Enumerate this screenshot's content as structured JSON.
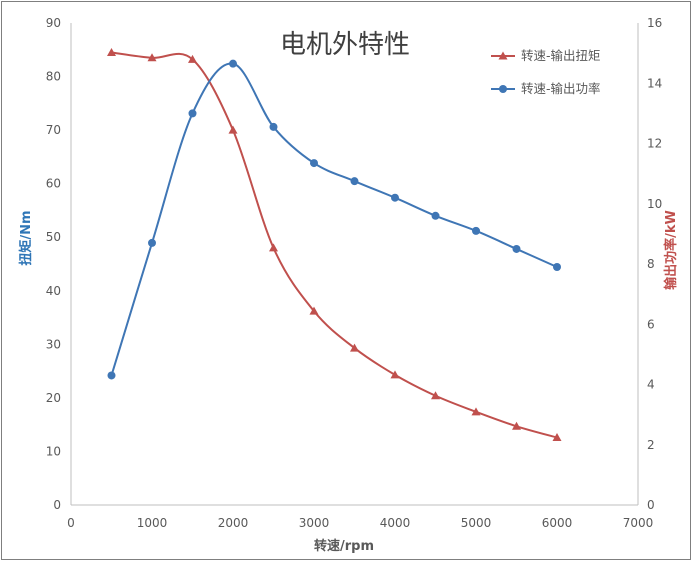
{
  "chart_data": {
    "type": "line",
    "title": "电机外特性",
    "xlabel": "转速/rpm",
    "ylabel_left": "扭矩/Nm",
    "ylabel_right": "输出功率/kW",
    "xlim": [
      0,
      7000
    ],
    "ylim_left": [
      0,
      90
    ],
    "ylim_right": [
      0,
      16
    ],
    "x_ticks": [
      0,
      1000,
      2000,
      3000,
      4000,
      5000,
      6000,
      7000
    ],
    "y_left_ticks": [
      0,
      10,
      20,
      30,
      40,
      50,
      60,
      70,
      80,
      90
    ],
    "y_right_ticks": [
      0,
      2,
      4,
      6,
      8,
      10,
      12,
      14,
      16
    ],
    "grid": false,
    "legend_position": "top-right",
    "series": [
      {
        "name": "转速-输出扭矩",
        "axis": "left",
        "color": "#c0504d",
        "marker": "triangle",
        "x": [
          500,
          1000,
          1500,
          2000,
          2500,
          3000,
          3500,
          4000,
          4500,
          5000,
          5500,
          6000
        ],
        "values": [
          84.5,
          83.5,
          83.2,
          70,
          48,
          36.2,
          29.3,
          24.3,
          20.4,
          17.4,
          14.7,
          12.6
        ]
      },
      {
        "name": "转速-输出功率",
        "axis": "right",
        "color": "#3f76b5",
        "marker": "circle",
        "x": [
          500,
          1000,
          1500,
          2000,
          2500,
          3000,
          3500,
          4000,
          4500,
          5000,
          5500,
          6000
        ],
        "values": [
          4.3,
          8.7,
          13.0,
          14.65,
          12.55,
          11.35,
          10.75,
          10.2,
          9.6,
          9.1,
          8.5,
          7.9
        ]
      }
    ]
  }
}
